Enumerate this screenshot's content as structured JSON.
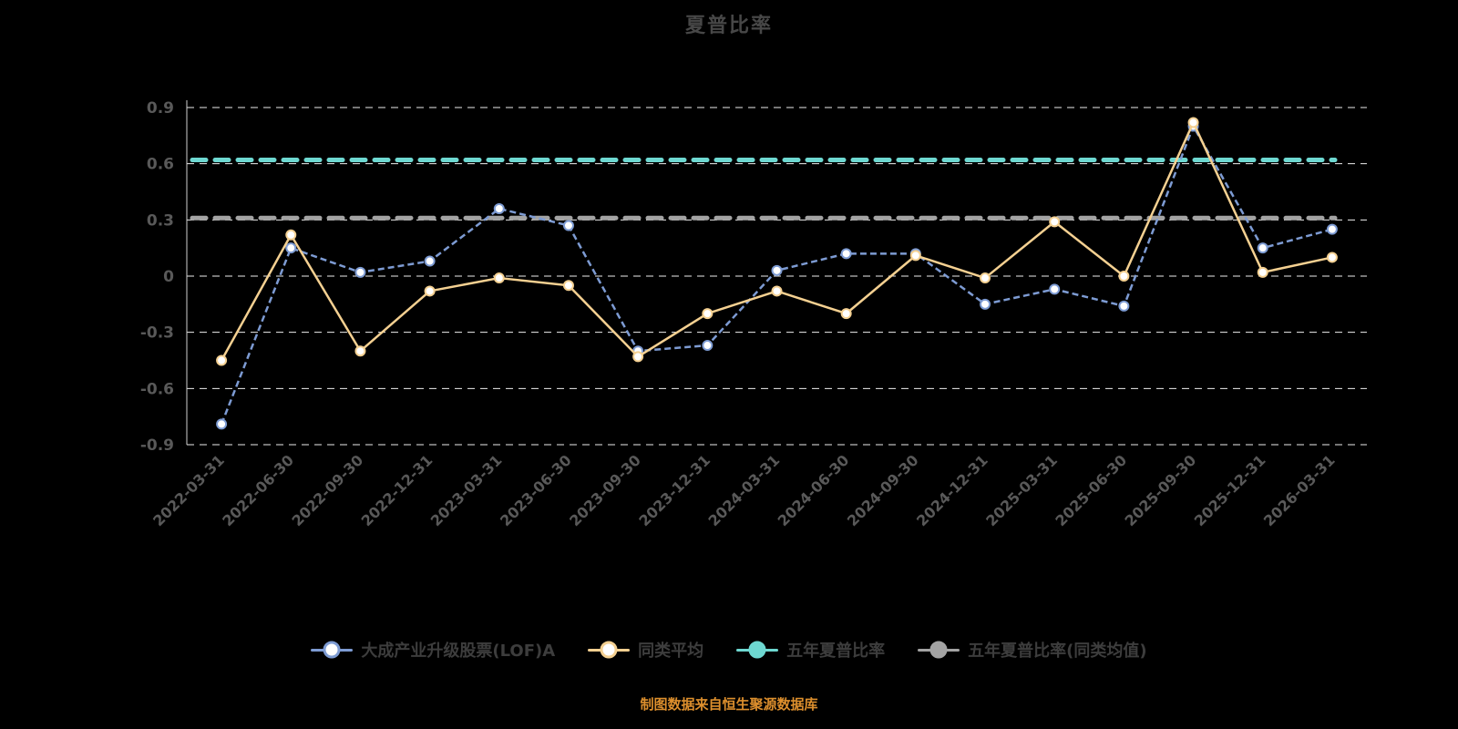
{
  "page": {
    "background": "#000000",
    "footer_note": "制图数据来自恒生聚源数据库",
    "footer_color": "#dd8f2d"
  },
  "chart_data": {
    "type": "line",
    "title": "夏普比率",
    "xlabel": "",
    "ylabel": "",
    "ylim": [
      -0.9,
      0.9
    ],
    "y_ticks": [
      0.9,
      0.6,
      0.3,
      0,
      -0.3,
      -0.6,
      -0.9
    ],
    "grid": true,
    "legend_position": "bottom",
    "grid_color": "#ededed",
    "axis_text_color": "#595959",
    "axis_line_color": "#cfcfcf",
    "categories": [
      "2022-03-31",
      "2022-06-30",
      "2022-09-30",
      "2022-12-31",
      "2023-03-31",
      "2023-06-30",
      "2023-09-30",
      "2023-12-31",
      "2024-03-31",
      "2024-06-30",
      "2024-09-30",
      "2024-12-31",
      "2025-03-31",
      "2025-06-30",
      "2025-09-30",
      "2025-12-31",
      "2026-03-31"
    ],
    "series": [
      {
        "name": "大成产业升级股票(LOF)A",
        "color": "#7d9bd3",
        "style": "dashed",
        "marker": "circle-open",
        "values": [
          -0.79,
          0.15,
          0.02,
          0.08,
          0.36,
          0.27,
          -0.4,
          -0.37,
          0.03,
          0.12,
          0.12,
          -0.15,
          -0.07,
          -0.16,
          0.8,
          0.15,
          0.25
        ]
      },
      {
        "name": "同类平均",
        "color": "#f4d091",
        "style": "solid",
        "marker": "circle-open",
        "values": [
          -0.45,
          0.22,
          -0.4,
          -0.08,
          -0.01,
          -0.05,
          -0.43,
          -0.2,
          -0.08,
          -0.2,
          0.11,
          -0.01,
          0.29,
          0,
          0.82,
          0.02,
          0.1
        ]
      }
    ],
    "reference_lines": [
      {
        "name": "五年夏普比率",
        "color": "#6ed8d1",
        "style": "dashed",
        "value": 0.62
      },
      {
        "name": "五年夏普比率(同类均值)",
        "color": "#a3a3a3",
        "style": "dashed",
        "value": 0.31
      }
    ]
  },
  "legend": {
    "items": [
      {
        "label": "大成产业升级股票(LOF)A",
        "color": "#7d9bd3",
        "marker": "open"
      },
      {
        "label": "同类平均",
        "color": "#f4d091",
        "marker": "open"
      },
      {
        "label": "五年夏普比率",
        "color": "#6ed8d1",
        "marker": "solid"
      },
      {
        "label": "五年夏普比率(同类均值)",
        "color": "#a3a3a3",
        "marker": "solid"
      }
    ]
  }
}
